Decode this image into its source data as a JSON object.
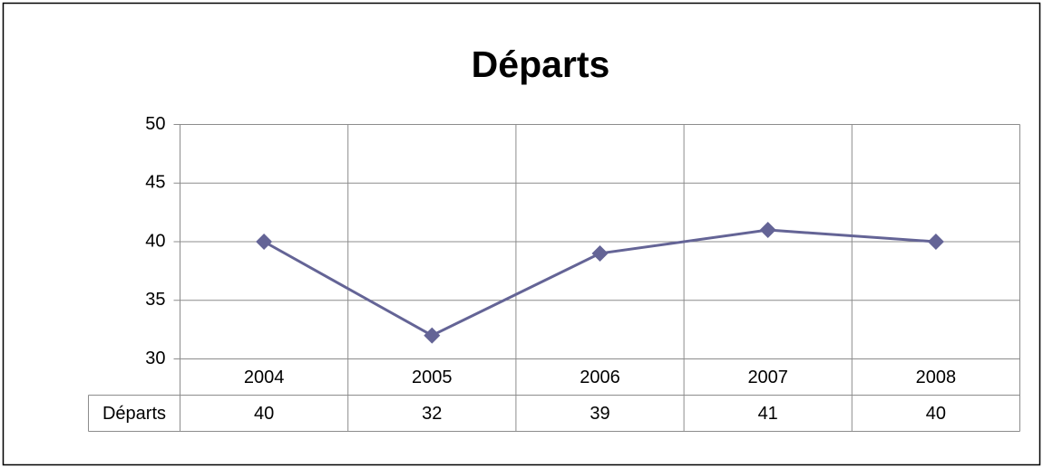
{
  "chart_data": {
    "type": "line",
    "title": "Départs",
    "categories": [
      "2004",
      "2005",
      "2006",
      "2007",
      "2008"
    ],
    "series": [
      {
        "name": "Départs",
        "color": "#646496",
        "values": [
          40,
          32,
          39,
          41,
          40
        ]
      }
    ],
    "ylim": [
      30,
      50
    ],
    "yticks": [
      30,
      35,
      40,
      45,
      50
    ],
    "grid": true
  }
}
